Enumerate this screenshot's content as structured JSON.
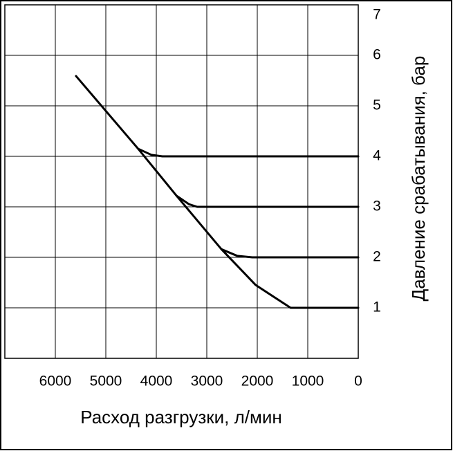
{
  "chart_data": {
    "type": "line",
    "x_label": "Расход разгрузки, л/мин",
    "y_label": "Давление срабатывания, бар",
    "xlim": [
      7000,
      0
    ],
    "xticks": [
      6000,
      5000,
      4000,
      3000,
      2000,
      1000,
      0
    ],
    "ylim": [
      0,
      7
    ],
    "yticks": [
      1,
      2,
      3,
      4,
      5,
      6,
      7
    ],
    "grid": true,
    "series": [
      {
        "color": "#000000",
        "x": [
          5590,
          4360,
          3600,
          2710,
          2030,
          1340,
          0
        ],
        "values": [
          5.59,
          4.15,
          3.22,
          2.16,
          1.45,
          1.0,
          1.0
        ]
      },
      {
        "color": "#000000",
        "x": [
          4360,
          4100,
          3880,
          0
        ],
        "values": [
          4.15,
          4.03,
          4.0,
          4.0
        ]
      },
      {
        "color": "#000000",
        "x": [
          3600,
          3350,
          3190,
          0
        ],
        "values": [
          3.22,
          3.05,
          3.0,
          3.0
        ]
      },
      {
        "color": "#000000",
        "x": [
          2710,
          2400,
          2100,
          0
        ],
        "values": [
          2.16,
          2.03,
          2.0,
          2.0
        ]
      }
    ]
  }
}
